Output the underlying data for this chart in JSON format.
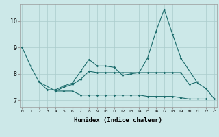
{
  "xlabel": "Humidex (Indice chaleur)",
  "background_color": "#cce8e8",
  "grid_color": "#aacccc",
  "line_color": "#1a6b6b",
  "ylim": [
    6.75,
    10.65
  ],
  "yticks": [
    7,
    8,
    9,
    10
  ],
  "xticks": [
    0,
    1,
    2,
    3,
    4,
    5,
    6,
    7,
    8,
    9,
    10,
    11,
    12,
    13,
    14,
    15,
    16,
    17,
    18,
    19,
    20,
    21,
    22,
    23
  ],
  "y1": [
    9.0,
    8.3,
    7.7,
    7.4,
    7.4,
    7.55,
    7.65,
    8.1,
    8.55,
    8.3,
    8.3,
    8.25,
    7.95,
    8.0,
    8.05,
    8.6,
    9.6,
    10.45,
    9.5,
    8.6,
    null,
    7.65,
    7.45,
    7.05
  ],
  "y2": [
    null,
    null,
    7.7,
    null,
    7.35,
    7.5,
    7.6,
    7.8,
    8.1,
    8.05,
    8.05,
    8.05,
    8.05,
    8.05,
    8.05,
    8.05,
    8.05,
    8.05,
    8.05,
    8.05,
    7.6,
    7.7,
    null,
    null
  ],
  "y3": [
    null,
    null,
    null,
    null,
    7.35,
    7.35,
    7.35,
    7.2,
    7.2,
    7.2,
    7.2,
    7.2,
    7.2,
    7.2,
    7.2,
    7.15,
    7.15,
    7.15,
    7.15,
    7.1,
    7.05,
    7.05,
    7.05,
    null
  ]
}
